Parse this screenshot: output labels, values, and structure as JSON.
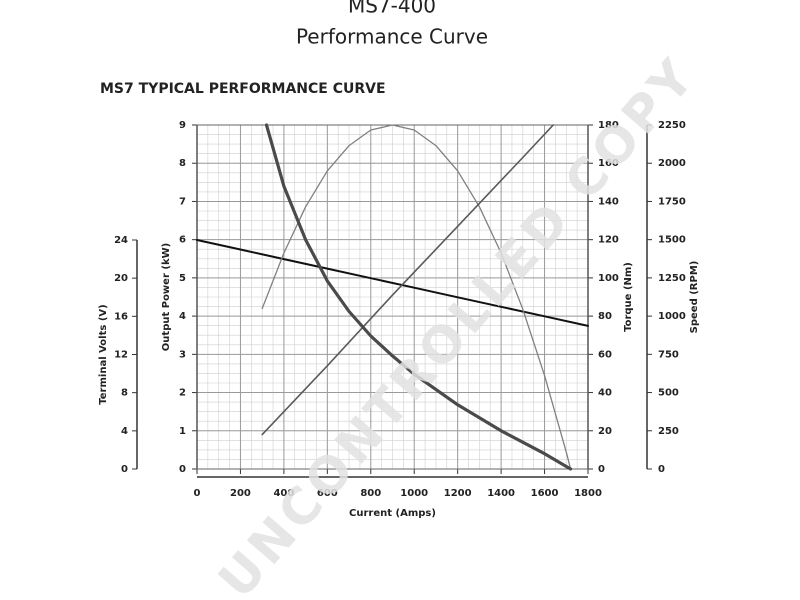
{
  "page_title": [
    "MS7-400",
    "Performance Curve"
  ],
  "watermark": "UNCONTROLLED COPY",
  "chart_data": {
    "type": "line",
    "title": "MS7 TYPICAL PERFORMANCE CURVE",
    "xlabel": "Current (Amps)",
    "xlim": [
      0,
      1800
    ],
    "xticks": [
      0,
      200,
      400,
      600,
      800,
      1000,
      1200,
      1400,
      1600,
      1800
    ],
    "ylabel": "Output Power (kW)",
    "ylim": [
      0,
      9
    ],
    "yticks": [
      0,
      1,
      2,
      3,
      4,
      5,
      6,
      7,
      8,
      9
    ],
    "y2label": "Torque (Nm)",
    "y2lim": [
      0,
      180
    ],
    "y2ticks": [
      0,
      20,
      40,
      60,
      80,
      100,
      120,
      140,
      160,
      180
    ],
    "y3label": "Speed (RPM)",
    "y3lim": [
      0,
      2250
    ],
    "y3ticks": [
      0,
      250,
      500,
      750,
      1000,
      1250,
      1500,
      1750,
      2000,
      2250
    ],
    "y4label": "Terminal Volts (V)",
    "y4lim": [
      0,
      24
    ],
    "y4ticks": [
      0,
      4,
      8,
      12,
      16,
      20,
      24
    ],
    "grid": true,
    "series": [
      {
        "name": "Terminal Volts",
        "axis": "y4",
        "color": "#111111",
        "width": 2,
        "x": [
          0,
          200,
          400,
          600,
          800,
          1000,
          1200,
          1400,
          1600,
          1800
        ],
        "values": [
          24,
          23,
          22,
          21,
          20,
          19,
          18,
          17,
          16,
          15
        ]
      },
      {
        "name": "Output Power",
        "axis": "y",
        "color": "#808080",
        "width": 1.3,
        "x": [
          300,
          400,
          500,
          600,
          700,
          800,
          900,
          1000,
          1100,
          1200,
          1300,
          1400,
          1500,
          1600,
          1700,
          1720
        ],
        "values": [
          4.2,
          5.65,
          6.86,
          7.8,
          8.46,
          8.87,
          9,
          8.87,
          8.46,
          7.8,
          6.86,
          5.65,
          4.18,
          2.44,
          0.44,
          0
        ]
      },
      {
        "name": "Torque",
        "axis": "y2",
        "color": "#5a5a5a",
        "width": 1.6,
        "x": [
          300,
          600,
          900,
          1200,
          1500,
          1640
        ],
        "values": [
          18,
          54,
          91,
          127,
          163,
          180
        ]
      },
      {
        "name": "Speed",
        "axis": "y3",
        "color": "#4a4a4a",
        "width": 3.2,
        "x": [
          320,
          400,
          500,
          600,
          700,
          800,
          900,
          1000,
          1200,
          1400,
          1600,
          1720
        ],
        "values": [
          2250,
          1850,
          1500,
          1230,
          1030,
          870,
          740,
          620,
          420,
          250,
          100,
          0
        ]
      }
    ]
  }
}
